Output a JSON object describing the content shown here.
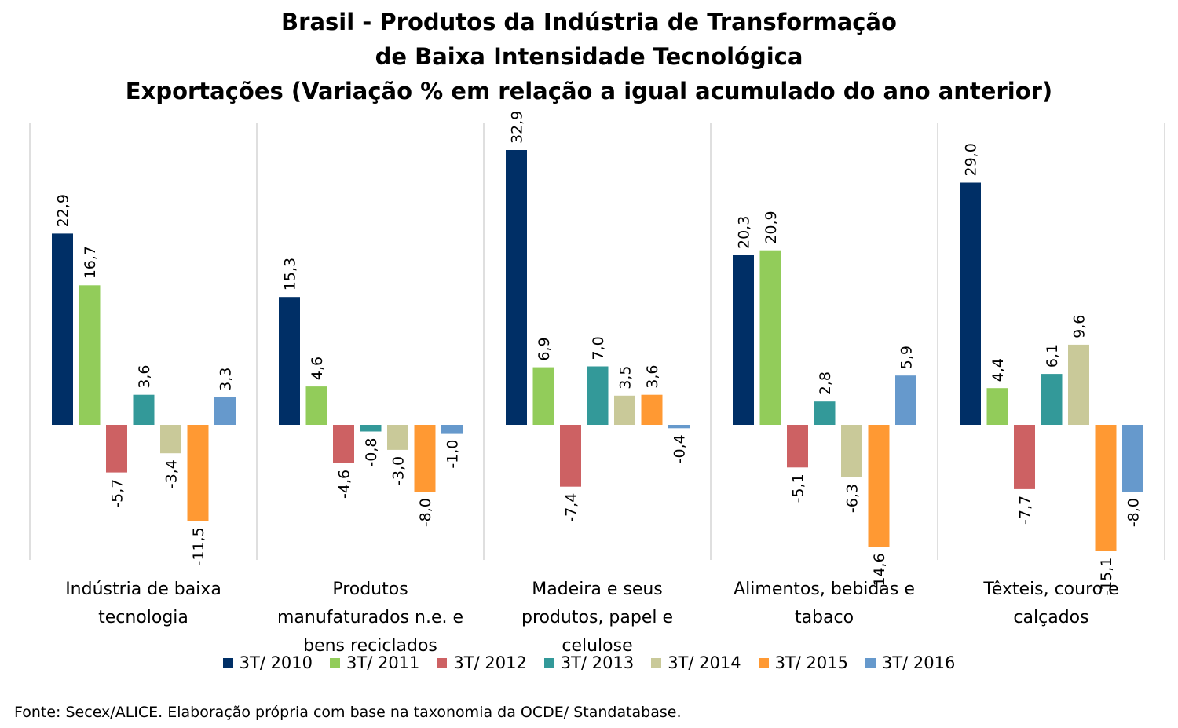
{
  "title": {
    "line1": "Brasil - Produtos da Indústria de Transformação",
    "line2": "de Baixa Intensidade Tecnológica",
    "line3": "Exportações (Variação % em relação a igual acumulado do ano anterior)"
  },
  "chart_data": {
    "type": "bar",
    "categories": [
      [
        "Indústria de baixa",
        "tecnologia"
      ],
      [
        "Produtos",
        "manufaturados n.e. e",
        "bens reciclados"
      ],
      [
        "Madeira e seus",
        "produtos, papel e",
        "celulose"
      ],
      [
        "Alimentos, bebidas e",
        "tabaco"
      ],
      [
        "Têxteis, couro e",
        "calçados"
      ]
    ],
    "series": [
      {
        "name": "3T/ 2010",
        "color": "#002F66",
        "values": [
          22.9,
          15.3,
          32.9,
          20.3,
          29.0
        ],
        "labels": [
          "22,9",
          "15,3",
          "32,9",
          "20,3",
          "29,0"
        ]
      },
      {
        "name": "3T/ 2011",
        "color": "#92CC5A",
        "values": [
          16.7,
          4.6,
          6.9,
          20.9,
          4.4
        ],
        "labels": [
          "16,7",
          "4,6",
          "6,9",
          "20,9",
          "4,4"
        ]
      },
      {
        "name": "3T/ 2012",
        "color": "#CD6163",
        "values": [
          -5.7,
          -4.6,
          -7.4,
          -5.1,
          -7.7
        ],
        "labels": [
          "-5,7",
          "-4,6",
          "-7,4",
          "-5,1",
          "-7,7"
        ]
      },
      {
        "name": "3T/ 2013",
        "color": "#339999",
        "values": [
          3.6,
          -0.8,
          7.0,
          2.8,
          6.1
        ],
        "labels": [
          "3,6",
          "-0,8",
          "7,0",
          "2,8",
          "6,1"
        ]
      },
      {
        "name": "3T/ 2014",
        "color": "#C9C999",
        "values": [
          -3.4,
          -3.0,
          3.5,
          -6.3,
          9.6
        ],
        "labels": [
          "-3,4",
          "-3,0",
          "3,5",
          "-6,3",
          "9,6"
        ]
      },
      {
        "name": "3T/ 2015",
        "color": "#FF9933",
        "values": [
          -11.5,
          -8.0,
          3.6,
          -14.6,
          -15.1
        ],
        "labels": [
          "-11,5",
          "-8,0",
          "3,6",
          "-14,6",
          "-15,1"
        ]
      },
      {
        "name": "3T/ 2016",
        "color": "#6699CC",
        "values": [
          3.3,
          -1.0,
          -0.4,
          5.9,
          -8.0
        ],
        "labels": [
          "3,3",
          "-1,0",
          "-0,4",
          "5,9",
          "-8,0"
        ]
      }
    ],
    "ylim": [
      -16,
      35
    ],
    "grid": false,
    "legend": "bottom"
  },
  "source": "Fonte: Secex/ALICE. Elaboração própria com base na taxonomia da OCDE/ Standatabase."
}
